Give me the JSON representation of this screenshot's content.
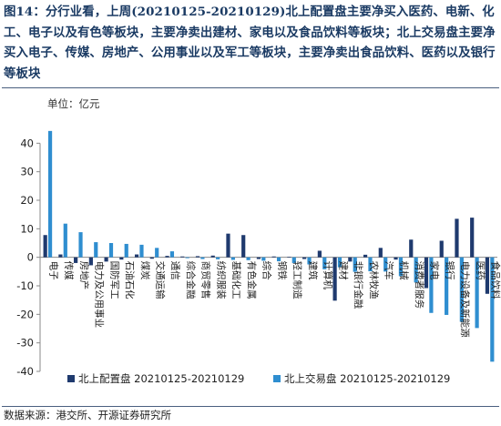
{
  "caption": "图14：分行业看，上周(20210125-20210129)北上配置盘主要净买入医药、电新、化工、电子以及有色等板块，主要净卖出建材、家电以及食品饮料等板块；北上交易盘主要净买入电子、传媒、房地产、公用事业以及军工等板块，主要净卖出食品饮料、医药以及银行等板块",
  "source": "数据来源：港交所、开源证券研究所",
  "colors": {
    "series1": "#1f3a6e",
    "series2": "#2f8ed0",
    "caption": "#1a3a63",
    "axis": "#8a8a8a"
  },
  "chart_data": {
    "type": "bar",
    "unit_label": "单位：亿元",
    "ylim": [
      -40,
      50
    ],
    "yticks": [
      -40,
      -30,
      -20,
      -10,
      0,
      10,
      20,
      30,
      40
    ],
    "grid": false,
    "legend_position": "bottom",
    "categories": [
      "电子",
      "传媒",
      "房地产",
      "电力及公用事业",
      "国防军工",
      "石油石化",
      "煤炭",
      "交通运输",
      "通信",
      "综合金融",
      "商贸零售",
      "纺织服装",
      "基础化工",
      "有色金属",
      "综合",
      "钢铁",
      "轻工制造",
      "建筑",
      "计算机",
      "建材",
      "非银行金融",
      "农林牧渔",
      "汽车",
      "机械",
      "消费者服务",
      "家电",
      "银行",
      "电力设备及新能源",
      "医药",
      "食品饮料"
    ],
    "series": [
      {
        "name": "北上配置盘 20210125-20210129",
        "values": [
          7.8,
          1.0,
          -2.0,
          -2.8,
          -1.5,
          -0.8,
          1.0,
          -0.5,
          0.5,
          0.3,
          0.4,
          0.6,
          8.3,
          7.8,
          -0.6,
          0.3,
          0.2,
          -0.6,
          2.3,
          -15.2,
          -1.5,
          0.9,
          3.3,
          -0.8,
          6.2,
          -10.8,
          5.8,
          13.5,
          13.9,
          -12.8
        ]
      },
      {
        "name": "北上交易盘 20210125-20210129",
        "values": [
          44.3,
          11.8,
          8.8,
          5.3,
          5.0,
          4.7,
          4.4,
          3.3,
          2.1,
          -0.3,
          -0.6,
          -0.7,
          -0.9,
          -1.0,
          -1.2,
          -1.4,
          -2.0,
          -2.5,
          -4.2,
          -3.5,
          -5.1,
          -4.9,
          -5.0,
          -6.6,
          -8.8,
          -19.5,
          -20.2,
          -22.6,
          -24.8,
          -36.6
        ]
      }
    ]
  }
}
